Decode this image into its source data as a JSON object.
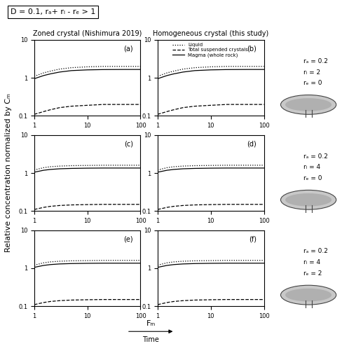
{
  "header": "D = 0.1, rₐ+ rₗ - rₑ > 1",
  "y_label": "Relative concentration normalized by Cₘ",
  "x_label": "Fₘ",
  "time_label": "Time",
  "row_labels": [
    [
      "rₐ = 0.2",
      "rₗ = 2",
      "rₑ = 0"
    ],
    [
      "rₐ = 0.2",
      "rₗ = 4",
      "rₑ = 0"
    ],
    [
      "rₐ = 0.2",
      "rₗ = 4",
      "rₑ = 2"
    ]
  ],
  "chart_data": [
    {
      "type": "line",
      "title": "Zoned crystal (Nishimura 2019)",
      "annotation": "(a)",
      "log": true,
      "x": [
        1,
        1.5,
        2,
        3,
        5,
        10,
        20,
        50,
        100
      ],
      "xlim": [
        1,
        100
      ],
      "ylim": [
        0.1,
        10
      ],
      "xticks": [
        1,
        10,
        100
      ],
      "yticks": [
        0.1,
        1,
        10
      ],
      "series": [
        {
          "name": "Liquid",
          "color": "#000000",
          "line_style": "dotted",
          "values": [
            1.1,
            1.35,
            1.5,
            1.7,
            1.85,
            1.95,
            2.0,
            2.0,
            2.0
          ]
        },
        {
          "name": "Total suspended crystals",
          "color": "#000000",
          "line_style": "dashed",
          "values": [
            0.11,
            0.13,
            0.145,
            0.165,
            0.18,
            0.19,
            0.2,
            0.2,
            0.2
          ]
        },
        {
          "name": "Magma (whole rock)",
          "color": "#000000",
          "line_style": "solid",
          "values": [
            0.95,
            1.15,
            1.27,
            1.42,
            1.55,
            1.62,
            1.65,
            1.66,
            1.66
          ]
        }
      ]
    },
    {
      "type": "line",
      "title": "Homogeneous crystal (this study)",
      "annotation": "(b)",
      "log": true,
      "legend": "upper right",
      "x": [
        1,
        1.5,
        2,
        3,
        5,
        10,
        20,
        50,
        100
      ],
      "xlim": [
        1,
        100
      ],
      "ylim": [
        0.1,
        10
      ],
      "xticks": [
        1,
        10,
        100
      ],
      "yticks": [
        0.1,
        1,
        10
      ],
      "series": [
        {
          "name": "Liquid",
          "color": "#000000",
          "line_style": "dotted",
          "values": [
            1.1,
            1.35,
            1.5,
            1.7,
            1.85,
            1.95,
            2.0,
            2.0,
            2.0
          ]
        },
        {
          "name": "Total suspended crystals",
          "color": "#000000",
          "line_style": "dashed",
          "values": [
            0.11,
            0.13,
            0.145,
            0.165,
            0.18,
            0.19,
            0.2,
            0.2,
            0.2
          ]
        },
        {
          "name": "Magma (whole rock)",
          "color": "#000000",
          "line_style": "solid",
          "values": [
            0.95,
            1.15,
            1.27,
            1.42,
            1.55,
            1.62,
            1.65,
            1.66,
            1.66
          ]
        }
      ]
    },
    {
      "type": "line",
      "annotation": "(c)",
      "log": true,
      "x": [
        1,
        1.5,
        2,
        3,
        5,
        10,
        20,
        50,
        100
      ],
      "xlim": [
        1,
        100
      ],
      "ylim": [
        0.1,
        10
      ],
      "xticks": [
        1,
        10,
        100
      ],
      "yticks": [
        0.1,
        1,
        10
      ],
      "series": [
        {
          "name": "Liquid",
          "color": "#000000",
          "line_style": "dotted",
          "values": [
            1.2,
            1.38,
            1.46,
            1.52,
            1.56,
            1.58,
            1.6,
            1.6,
            1.6
          ]
        },
        {
          "name": "Total suspended crystals",
          "color": "#000000",
          "line_style": "dashed",
          "values": [
            0.11,
            0.125,
            0.133,
            0.14,
            0.145,
            0.148,
            0.15,
            0.15,
            0.15
          ]
        },
        {
          "name": "Magma (whole rock)",
          "color": "#000000",
          "line_style": "solid",
          "values": [
            1.05,
            1.18,
            1.24,
            1.29,
            1.32,
            1.34,
            1.35,
            1.35,
            1.35
          ]
        }
      ]
    },
    {
      "type": "line",
      "annotation": "(d)",
      "log": true,
      "x": [
        1,
        1.5,
        2,
        3,
        5,
        10,
        20,
        50,
        100
      ],
      "xlim": [
        1,
        100
      ],
      "ylim": [
        0.1,
        10
      ],
      "xticks": [
        1,
        10,
        100
      ],
      "yticks": [
        0.1,
        1,
        10
      ],
      "series": [
        {
          "name": "Liquid",
          "color": "#000000",
          "line_style": "dotted",
          "values": [
            1.2,
            1.38,
            1.46,
            1.52,
            1.56,
            1.58,
            1.6,
            1.6,
            1.6
          ]
        },
        {
          "name": "Total suspended crystals",
          "color": "#000000",
          "line_style": "dashed",
          "values": [
            0.11,
            0.125,
            0.133,
            0.14,
            0.145,
            0.148,
            0.15,
            0.15,
            0.15
          ]
        },
        {
          "name": "Magma (whole rock)",
          "color": "#000000",
          "line_style": "solid",
          "values": [
            1.05,
            1.18,
            1.24,
            1.29,
            1.32,
            1.34,
            1.35,
            1.35,
            1.35
          ]
        }
      ]
    },
    {
      "type": "line",
      "annotation": "(e)",
      "log": true,
      "x": [
        1,
        1.5,
        2,
        3,
        5,
        10,
        20,
        50,
        100
      ],
      "xlim": [
        1,
        100
      ],
      "ylim": [
        0.1,
        10
      ],
      "xticks": [
        1,
        10,
        100
      ],
      "yticks": [
        0.1,
        1,
        10
      ],
      "series": [
        {
          "name": "Liquid",
          "color": "#000000",
          "line_style": "dotted",
          "values": [
            1.2,
            1.38,
            1.46,
            1.52,
            1.56,
            1.58,
            1.6,
            1.6,
            1.6
          ]
        },
        {
          "name": "Total suspended crystals",
          "color": "#000000",
          "line_style": "dashed",
          "values": [
            0.11,
            0.125,
            0.133,
            0.14,
            0.145,
            0.148,
            0.15,
            0.15,
            0.15
          ]
        },
        {
          "name": "Magma (whole rock)",
          "color": "#000000",
          "line_style": "solid",
          "values": [
            1.05,
            1.18,
            1.24,
            1.29,
            1.32,
            1.34,
            1.35,
            1.35,
            1.35
          ]
        }
      ]
    },
    {
      "type": "line",
      "annotation": "(f)",
      "log": true,
      "x": [
        1,
        1.5,
        2,
        3,
        5,
        10,
        20,
        50,
        100
      ],
      "xlim": [
        1,
        100
      ],
      "ylim": [
        0.1,
        10
      ],
      "xticks": [
        1,
        10,
        100
      ],
      "yticks": [
        0.1,
        1,
        10
      ],
      "series": [
        {
          "name": "Liquid",
          "color": "#000000",
          "line_style": "dotted",
          "values": [
            1.2,
            1.38,
            1.46,
            1.52,
            1.56,
            1.58,
            1.6,
            1.6,
            1.6
          ]
        },
        {
          "name": "Total suspended crystals",
          "color": "#000000",
          "line_style": "dashed",
          "values": [
            0.11,
            0.125,
            0.133,
            0.14,
            0.145,
            0.148,
            0.15,
            0.15,
            0.15
          ]
        },
        {
          "name": "Magma (whole rock)",
          "color": "#000000",
          "line_style": "solid",
          "values": [
            1.05,
            1.18,
            1.24,
            1.29,
            1.32,
            1.34,
            1.35,
            1.35,
            1.35
          ]
        }
      ]
    }
  ]
}
